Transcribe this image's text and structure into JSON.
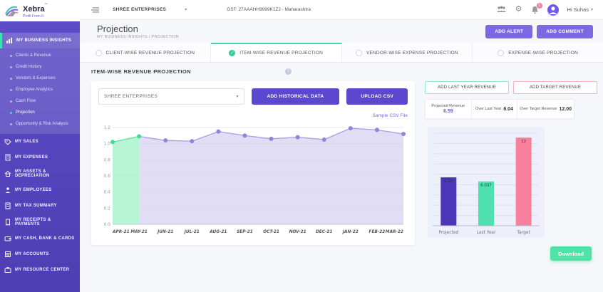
{
  "icons": {
    "check": "✓",
    "caret": "▾",
    "info": "i",
    "gear": "⚙"
  },
  "topbar": {
    "brand": {
      "name": "Xebra",
      "tm": "™",
      "tagline": "Profit From It"
    },
    "company_selector": "SHREE ENTERPRISES",
    "gst_text": "GST: 27AAAHH9999K1ZJ - Maharashtra",
    "notification_badge": "1",
    "greeting": "Hi Suhas"
  },
  "sidebar": {
    "sections": [
      {
        "label": "MY BUSINESS INSIGHTS"
      },
      {
        "label": "MY SALES"
      },
      {
        "label": "MY EXPENSES"
      },
      {
        "label": "MY ASSETS & DEPRECIATION"
      },
      {
        "label": "MY EMPLOYEES"
      },
      {
        "label": "MY TAX SUMMARY"
      },
      {
        "label": "MY RECEIPTS & PAYMENTS"
      },
      {
        "label": "MY CASH, BANK & CARDS"
      },
      {
        "label": "MY ACCOUNTS"
      },
      {
        "label": "MY RESOURCE CENTER"
      }
    ],
    "insights_items": [
      {
        "label": "Clients & Revenue"
      },
      {
        "label": "Credit History"
      },
      {
        "label": "Vendors & Expenses"
      },
      {
        "label": "Employee Analytics"
      },
      {
        "label": "Cash Flow"
      },
      {
        "label": "Projection"
      },
      {
        "label": "Opportunity & Risk Analysis"
      }
    ]
  },
  "header": {
    "title": "Projection",
    "breadcrumb": "MY BUSINESS INSIGHTS / PROJECTION",
    "add_alert_label": "ADD ALERT",
    "add_comment_label": "ADD COMMENT"
  },
  "tabs": [
    {
      "label": "CLIENT-WISE REVENUE PROJECTION"
    },
    {
      "label": "ITEM-WISE REVENUE PROJECTION"
    },
    {
      "label": "VENDOR-WISE EXPENSE PROJECTION"
    },
    {
      "label": "EXPENSE-WISE PROJECTION"
    }
  ],
  "main": {
    "section_title": "ITEM-WISE REVENUE PROJECTION",
    "company_dropdown": "SHREE ENTERPRISES",
    "add_historical_label": "ADD HISTORICAL DATA",
    "upload_csv_label": "UPLOAD CSV",
    "sample_csv_label": "Sample CSV File"
  },
  "right_panel": {
    "add_last_year_label": "ADD LAST YEAR REVENUE",
    "add_target_label": "ADD TARGET REVENUE",
    "stats": [
      {
        "label": "Projected Revenue",
        "value": "6.59"
      },
      {
        "label": "Over Last Year",
        "value": "6.04"
      },
      {
        "label": "Over Target Revenue",
        "value": "12.00"
      }
    ],
    "download_label": "Download"
  },
  "colors": {
    "accent_purple": "#7b68e2",
    "deep_indigo": "#5b48cf",
    "mint": "#4fe3a8",
    "pink": "#f8809c",
    "teal_bar": "#3ae2b2"
  },
  "chart_data": [
    {
      "type": "area",
      "x": [
        "APR-21",
        "MAY-21",
        "JUN-21",
        "JUL-21",
        "AUG-21",
        "SEP-21",
        "OCT-21",
        "NOV-21",
        "DEC-21",
        "JAN-22",
        "FEB-22",
        "MAR-22"
      ],
      "values": [
        1.02,
        1.09,
        1.04,
        1.03,
        1.15,
        1.1,
        1.06,
        1.08,
        1.05,
        1.19,
        1.17,
        1.12
      ],
      "ylim": [
        0,
        1.2
      ],
      "yticks": [
        0.0,
        0.2,
        0.4,
        0.6,
        0.8,
        1.0,
        1.2
      ],
      "grid": true,
      "legend": "none",
      "title": "",
      "xlabel": "",
      "ylabel": "",
      "highlight_segment": {
        "from": 0,
        "to": 1,
        "fill": "#a9f3cd",
        "line": "#63e2a3",
        "point": "#3fdd94"
      },
      "series_color": "#a9a4e6",
      "fill_color": "#dad7f3",
      "point_color": "#8d87dc"
    },
    {
      "type": "bar",
      "categories": [
        "Projected",
        "Last Year",
        "Target"
      ],
      "values": [
        6.59,
        6.037,
        12
      ],
      "bar_labels": [
        "6.59",
        "6.037",
        "12"
      ],
      "bar_colors": [
        "#4b36b8",
        "#4fe0b0",
        "#f8809c"
      ],
      "ylim": [
        0,
        12.6
      ],
      "grid": true,
      "legend": "none",
      "title": "",
      "xlabel": "",
      "ylabel": ""
    }
  ]
}
